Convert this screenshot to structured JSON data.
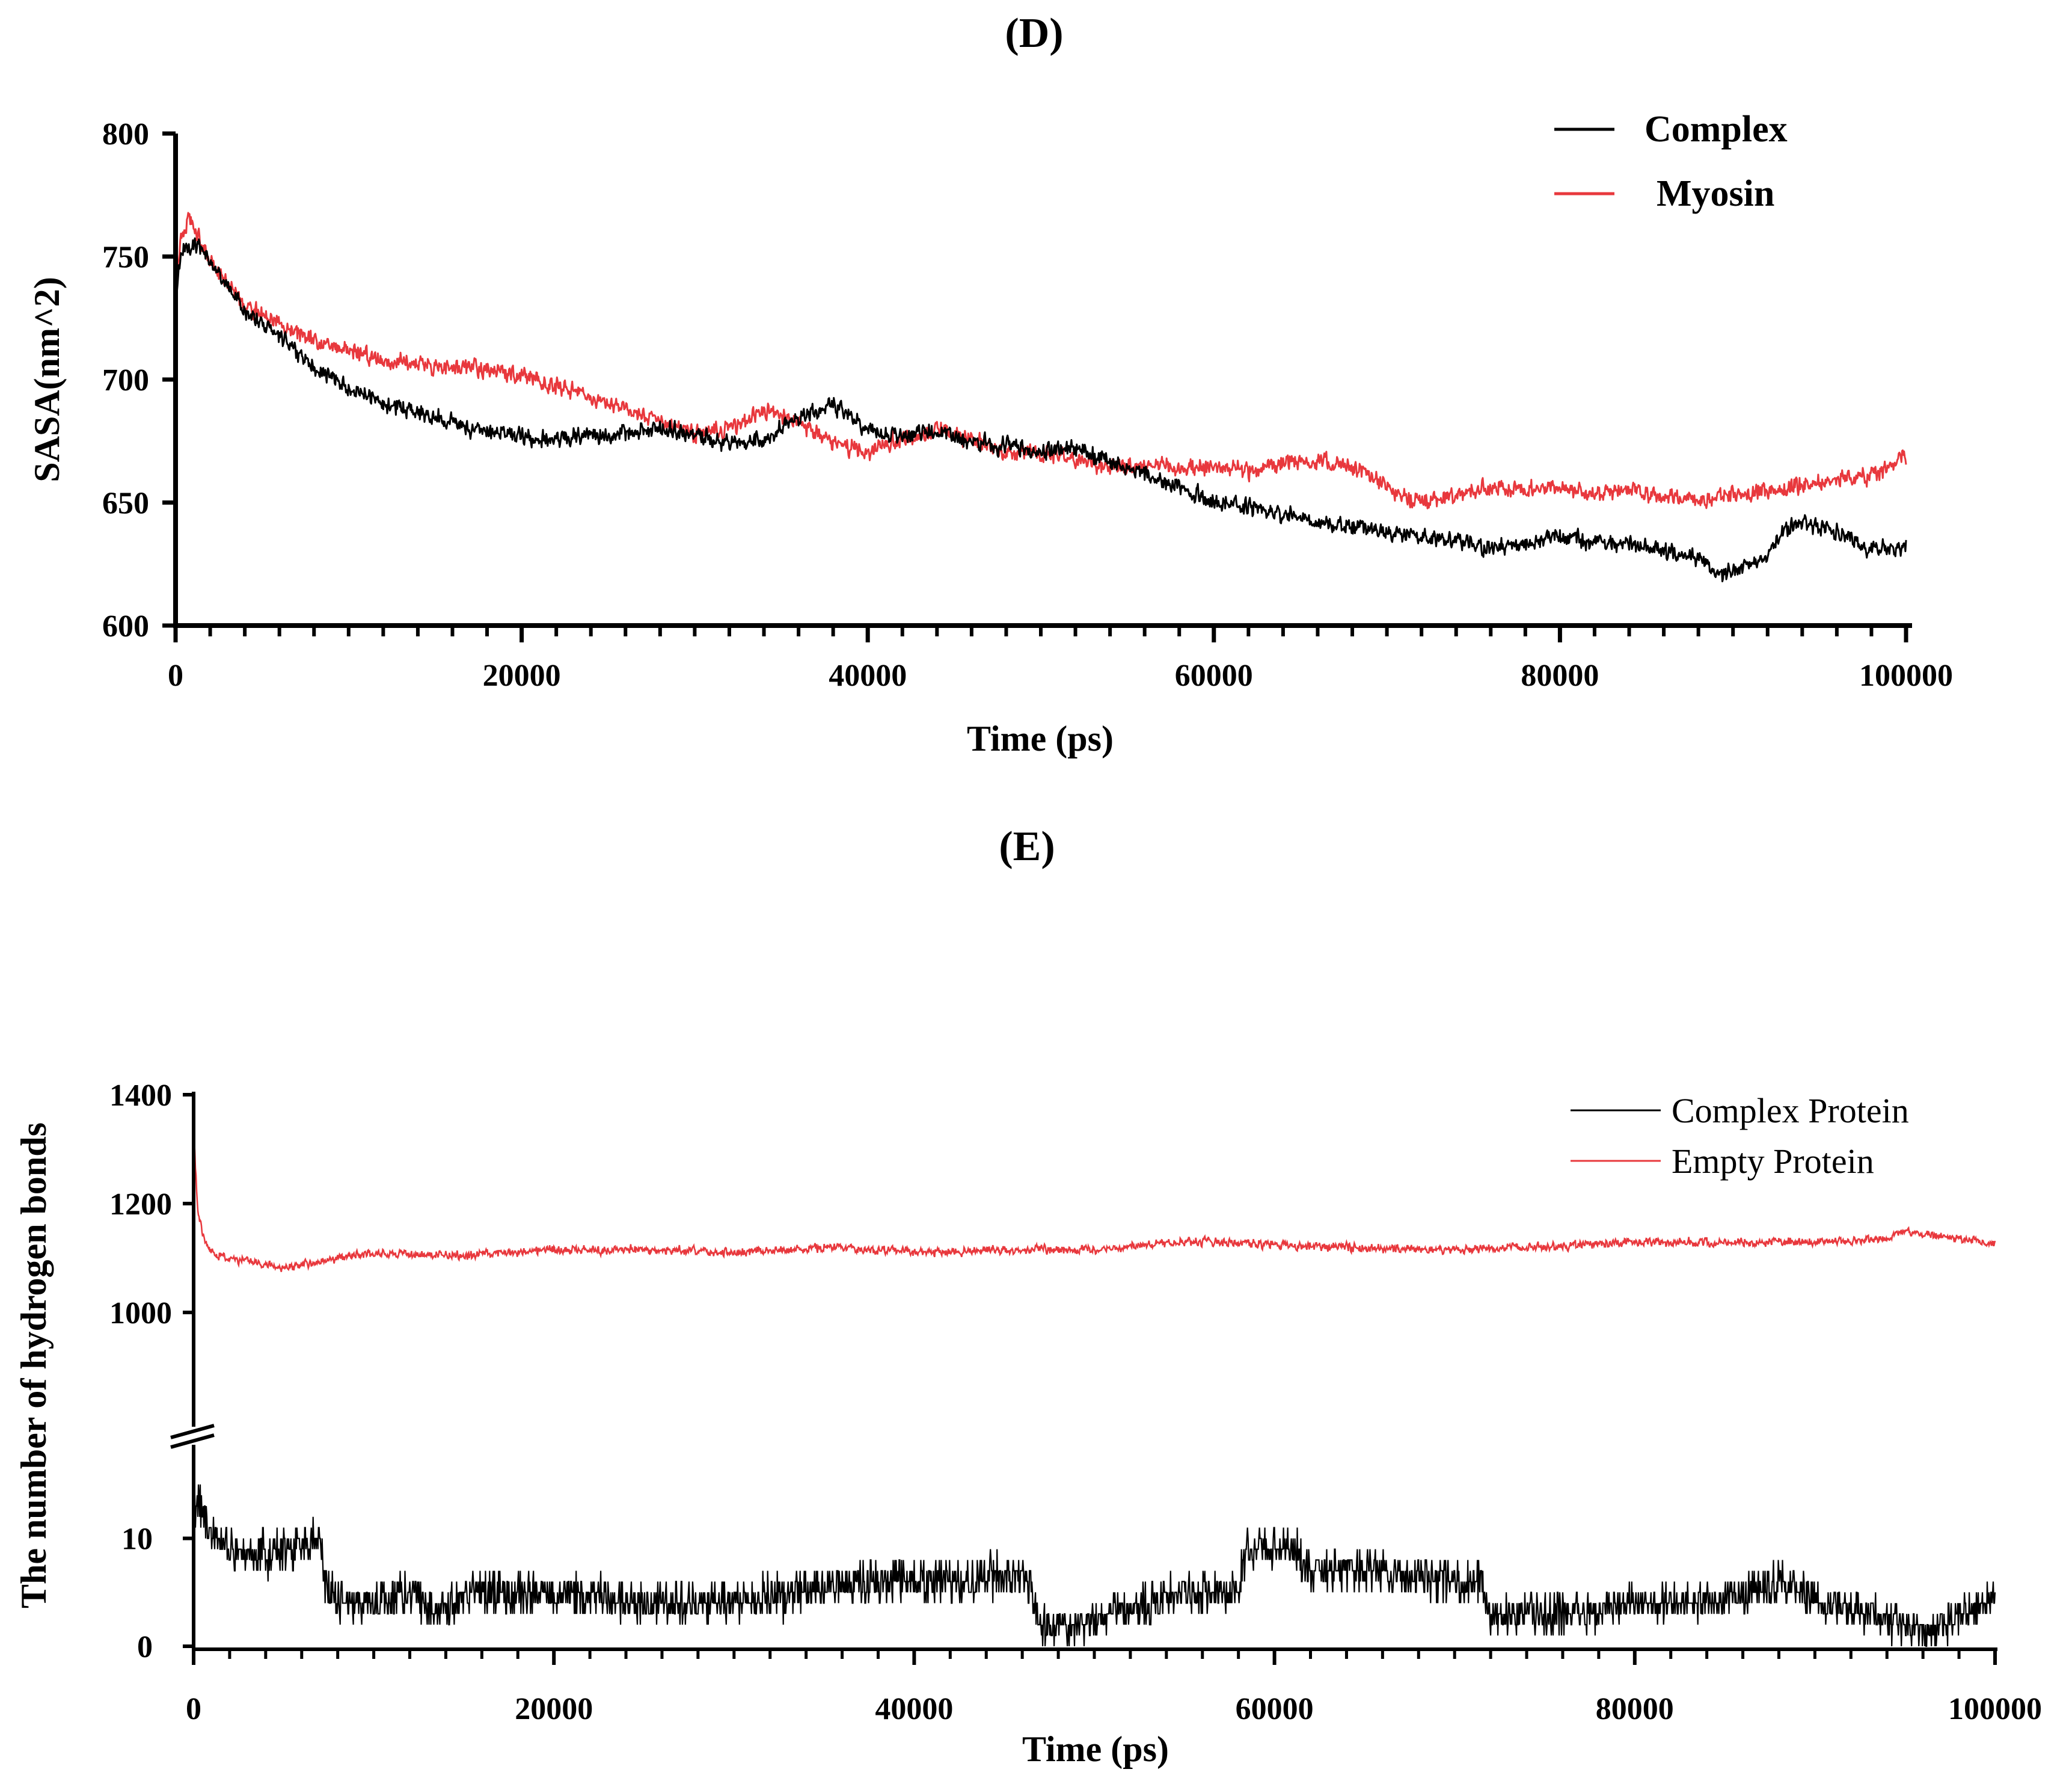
{
  "chart_data": [
    {
      "panel": "(D)",
      "type": "line",
      "xlabel": "Time (ps)",
      "ylabel": "SASA(nm^2)",
      "xlim": [
        0,
        100000
      ],
      "ylim": [
        600,
        800
      ],
      "xticks": [
        0,
        20000,
        40000,
        60000,
        80000,
        100000
      ],
      "yticks": [
        600,
        650,
        700,
        750,
        800
      ],
      "legend_position": "top-right",
      "grid": false,
      "series": [
        {
          "name": "Complex",
          "color": "#000000",
          "noise": 6,
          "x": [
            0,
            300,
            1000,
            2000,
            3000,
            4000,
            6000,
            8000,
            10000,
            12000,
            15000,
            17000,
            20000,
            22000,
            25000,
            28000,
            30000,
            32000,
            34000,
            36000,
            38000,
            40000,
            42000,
            44000,
            46000,
            48000,
            50000,
            52000,
            54000,
            56000,
            58000,
            60000,
            62000,
            64000,
            66000,
            68000,
            70000,
            72000,
            74000,
            76000,
            78000,
            80000,
            82000,
            84000,
            86000,
            88000,
            89000,
            90000,
            92000,
            93000,
            94000,
            96000,
            98000,
            100000
          ],
          "y": [
            730,
            752,
            756,
            748,
            738,
            728,
            718,
            705,
            697,
            690,
            685,
            680,
            677,
            676,
            678,
            680,
            678,
            674,
            676,
            684,
            690,
            680,
            677,
            679,
            675,
            673,
            671,
            672,
            667,
            662,
            656,
            650,
            648,
            645,
            642,
            640,
            638,
            636,
            635,
            632,
            633,
            636,
            634,
            633,
            630,
            628,
            620,
            622,
            628,
            640,
            642,
            638,
            631,
            632
          ]
        },
        {
          "name": "Myosin",
          "color": "#e8383d",
          "noise": 6,
          "x": [
            0,
            300,
            800,
            2000,
            3000,
            4000,
            6000,
            8000,
            10000,
            12000,
            14000,
            16000,
            18000,
            20000,
            22000,
            24000,
            26000,
            28000,
            30000,
            32000,
            34000,
            36000,
            38000,
            40000,
            42000,
            44000,
            46000,
            48000,
            50000,
            52000,
            54000,
            56000,
            58000,
            60000,
            62000,
            64000,
            66000,
            68000,
            70000,
            72000,
            74000,
            76000,
            78000,
            80000,
            82000,
            84000,
            86000,
            88000,
            90000,
            92000,
            94000,
            96000,
            98000,
            100000
          ],
          "y": [
            735,
            758,
            765,
            748,
            738,
            730,
            722,
            716,
            712,
            708,
            707,
            705,
            704,
            702,
            697,
            692,
            688,
            683,
            678,
            680,
            688,
            682,
            674,
            671,
            676,
            680,
            676,
            670,
            670,
            668,
            664,
            665,
            664,
            665,
            663,
            666,
            667,
            665,
            656,
            650,
            653,
            656,
            655,
            656,
            654,
            655,
            653,
            650,
            654,
            655,
            657,
            659,
            661,
            669
          ]
        }
      ]
    },
    {
      "panel": "(E)",
      "type": "line",
      "xlabel": "Time (ps)",
      "ylabel": "The number of hydrogen bonds",
      "xlim": [
        0,
        100000
      ],
      "broken_y_axis": true,
      "upper_ylim": [
        1000,
        1400
      ],
      "upper_yticks": [
        1000,
        1200,
        1400
      ],
      "lower_ylim": [
        0,
        15
      ],
      "lower_yticks": [
        0,
        10
      ],
      "xticks": [
        0,
        20000,
        40000,
        60000,
        80000,
        100000
      ],
      "legend_position": "top-right",
      "grid": false,
      "series": [
        {
          "name": "Complex Protein",
          "color": "#000000",
          "noise": 1.5,
          "x": [
            0,
            300,
            1000,
            3000,
            5000,
            6500,
            7000,
            7300,
            8000,
            10000,
            12000,
            14000,
            15000,
            20000,
            25000,
            30000,
            34000,
            38000,
            42000,
            46000,
            46600,
            47000,
            50000,
            51000,
            53000,
            55000,
            58000,
            58500,
            61000,
            62000,
            66000,
            70000,
            71500,
            72000,
            76000,
            80000,
            84000,
            86000,
            88000,
            90000,
            93000,
            95000,
            96000,
            98000,
            100000
          ],
          "y": [
            12,
            14,
            10,
            8,
            9,
            10,
            10,
            6,
            4,
            4,
            5,
            3,
            5,
            5,
            4,
            4,
            5,
            6,
            6,
            7,
            5,
            2,
            2,
            3,
            4,
            5,
            5,
            9,
            9,
            7,
            7,
            6,
            6,
            3,
            3,
            4,
            4,
            5,
            6,
            4,
            3,
            2,
            1,
            3,
            4
          ]
        },
        {
          "name": "Empty Protein",
          "color": "#e8383d",
          "noise": 14,
          "x": [
            0,
            200,
            500,
            1000,
            2000,
            5000,
            8000,
            10000,
            15000,
            20000,
            25000,
            30000,
            35000,
            40000,
            45000,
            50000,
            55000,
            60000,
            65000,
            70000,
            75000,
            80000,
            85000,
            90000,
            94000,
            95000,
            97000,
            100000
          ],
          "y": [
            1340,
            1200,
            1140,
            1110,
            1100,
            1080,
            1100,
            1108,
            1105,
            1115,
            1115,
            1110,
            1120,
            1110,
            1115,
            1115,
            1130,
            1125,
            1118,
            1115,
            1120,
            1130,
            1128,
            1130,
            1135,
            1150,
            1140,
            1125
          ]
        }
      ]
    }
  ]
}
